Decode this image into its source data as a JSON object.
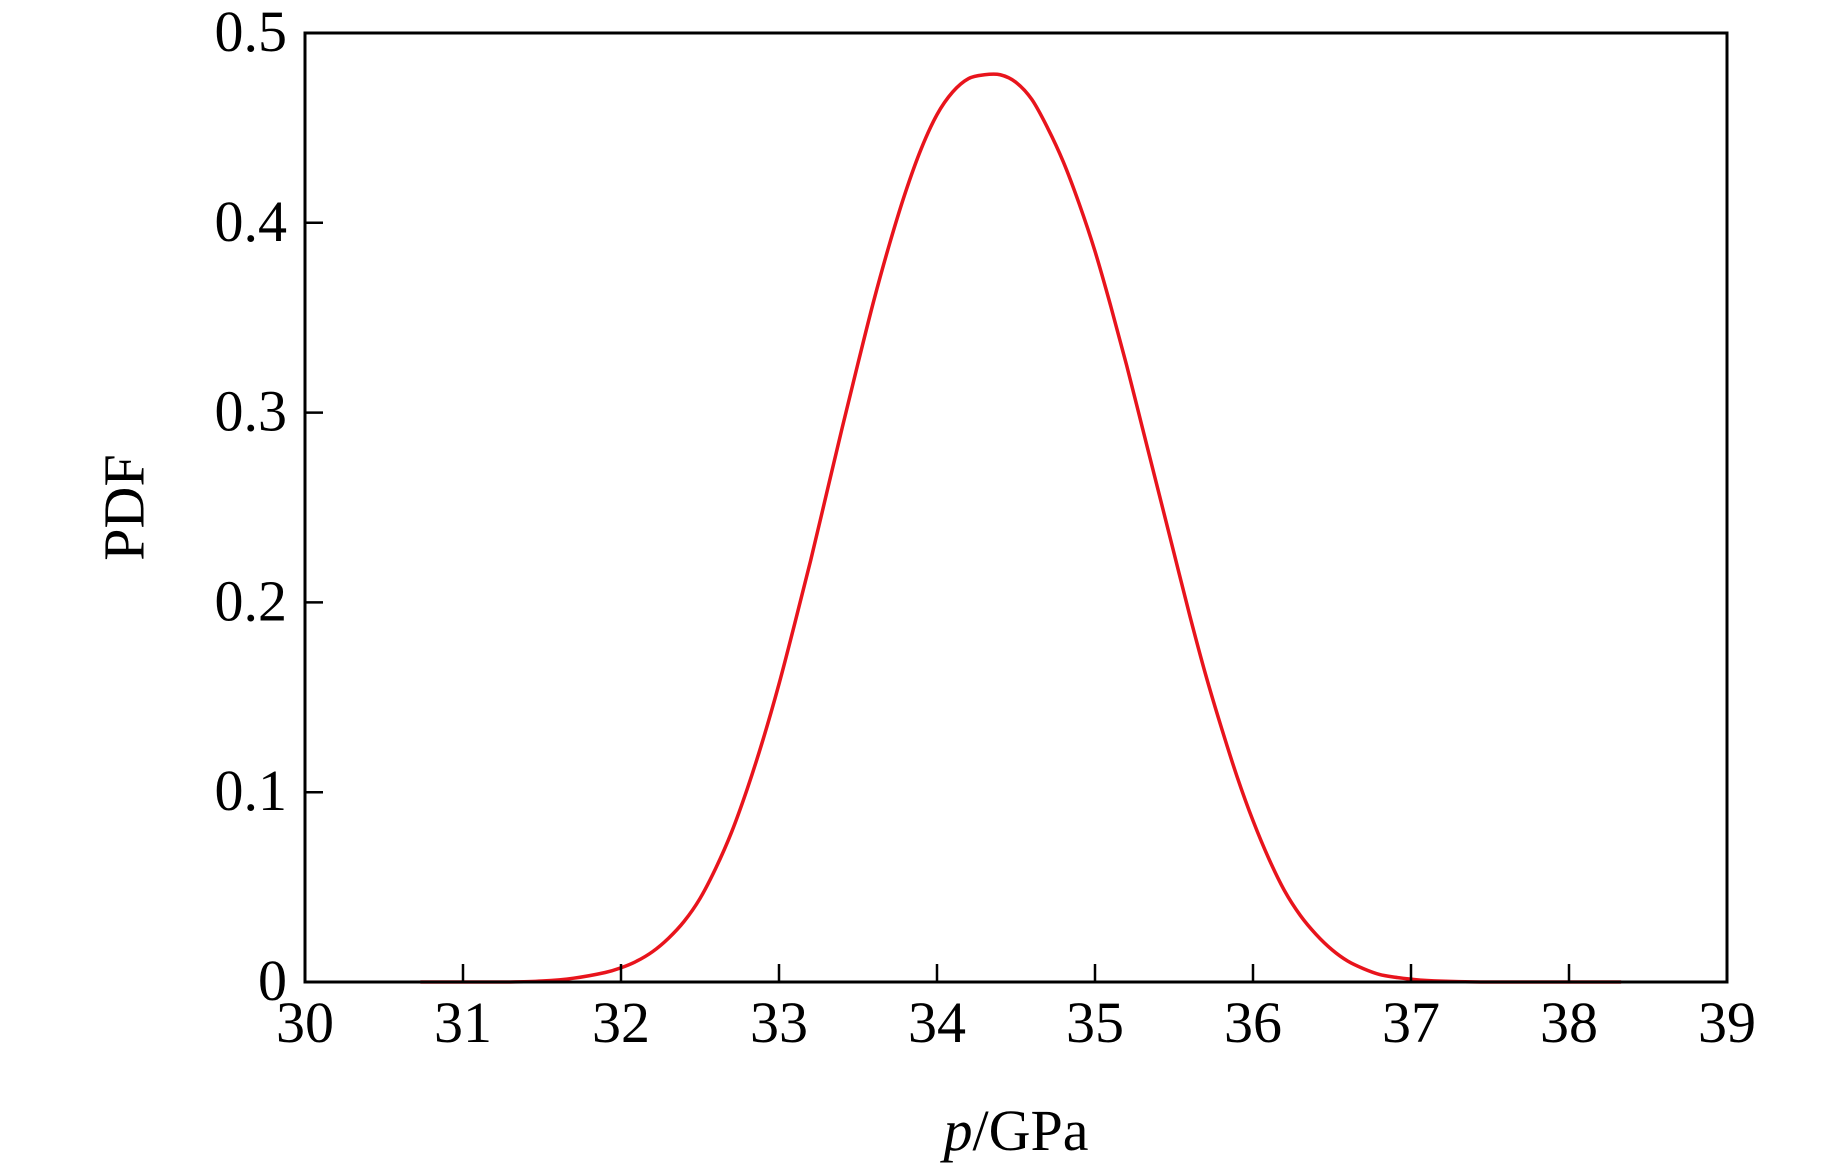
{
  "chart_data": {
    "type": "line",
    "title": "",
    "xlabel": "p/GPa",
    "xlabel_parts": {
      "italic": "p",
      "rest": "/GPa"
    },
    "ylabel": "PDF",
    "xlim": [
      30,
      39
    ],
    "ylim": [
      0,
      0.5
    ],
    "x_ticks": [
      30,
      31,
      32,
      33,
      34,
      35,
      36,
      37,
      38,
      39
    ],
    "x_tick_labels": [
      "30",
      "31",
      "32",
      "33",
      "34",
      "35",
      "36",
      "37",
      "38",
      "39"
    ],
    "y_ticks": [
      0,
      0.1,
      0.2,
      0.3,
      0.4,
      0.5
    ],
    "y_tick_labels": [
      "0",
      "0.1",
      "0.2",
      "0.3",
      "0.4",
      "0.5"
    ],
    "grid": false,
    "legend": "none",
    "series": [
      {
        "color": "#e8141c",
        "x": [
          30.73,
          31.0,
          31.3,
          31.5,
          31.7,
          31.9,
          32.0,
          32.1,
          32.2,
          32.3,
          32.4,
          32.5,
          32.6,
          32.7,
          32.8,
          32.9,
          33.0,
          33.1,
          33.2,
          33.3,
          33.4,
          33.5,
          33.6,
          33.7,
          33.8,
          33.9,
          34.0,
          34.1,
          34.2,
          34.3,
          34.4,
          34.5,
          34.6,
          34.7,
          34.8,
          34.9,
          35.0,
          35.1,
          35.2,
          35.3,
          35.4,
          35.5,
          35.6,
          35.7,
          35.8,
          35.9,
          36.0,
          36.1,
          36.2,
          36.3,
          36.4,
          36.5,
          36.6,
          36.7,
          36.8,
          36.9,
          37.0,
          37.1,
          37.3,
          37.5,
          37.8,
          38.1,
          38.33
        ],
        "y": [
          0.0,
          0.0,
          0.0,
          0.0005,
          0.002,
          0.005,
          0.0075,
          0.011,
          0.016,
          0.023,
          0.032,
          0.044,
          0.06,
          0.079,
          0.102,
          0.128,
          0.157,
          0.189,
          0.222,
          0.257,
          0.292,
          0.326,
          0.359,
          0.389,
          0.416,
          0.439,
          0.457,
          0.469,
          0.476,
          0.478,
          0.478,
          0.474,
          0.465,
          0.45,
          0.432,
          0.41,
          0.385,
          0.356,
          0.325,
          0.292,
          0.259,
          0.226,
          0.193,
          0.162,
          0.134,
          0.108,
          0.085,
          0.065,
          0.048,
          0.035,
          0.025,
          0.017,
          0.011,
          0.007,
          0.004,
          0.0025,
          0.0015,
          0.0008,
          0.0002,
          0.0,
          0.0,
          0.0,
          0.0
        ]
      }
    ]
  }
}
